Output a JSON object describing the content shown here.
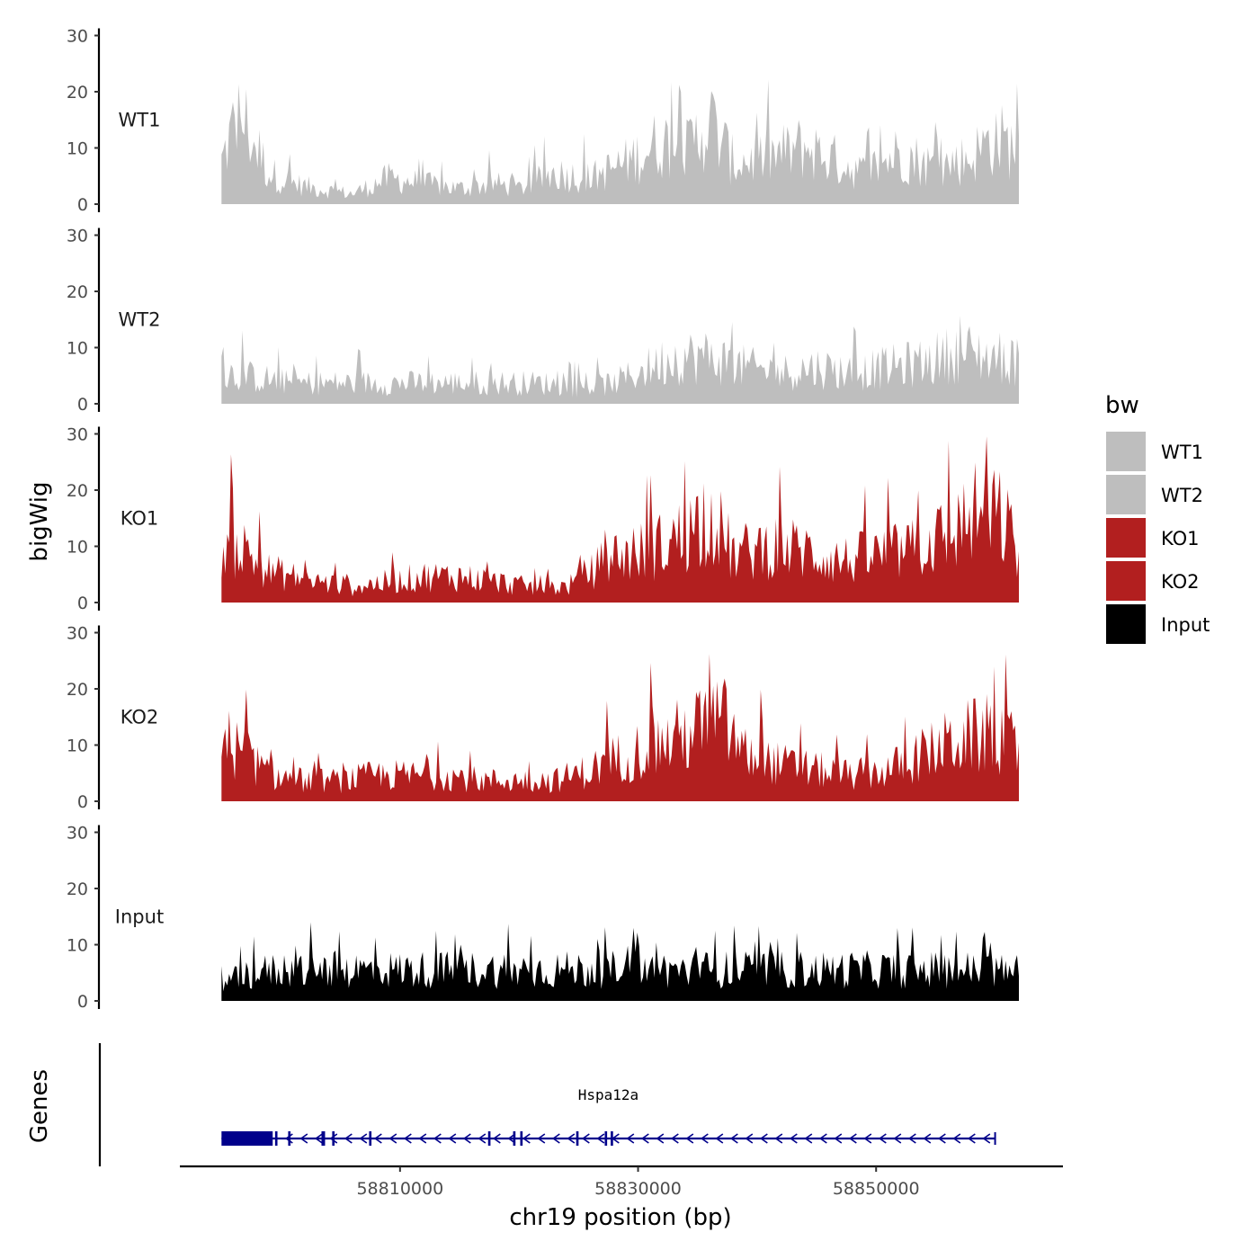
{
  "chart_data": {
    "type": "area",
    "title": "",
    "ylabel": "bigWig",
    "genes_label": "Genes",
    "xlabel": "chr19 position (bp)",
    "xlim": [
      58791500,
      58865700
    ],
    "x_ticks": [
      {
        "value": 58810000,
        "label": "58810000"
      },
      {
        "value": 58830000,
        "label": "58830000"
      },
      {
        "value": 58850000,
        "label": "58850000"
      }
    ],
    "ylim": [
      0,
      30
    ],
    "y_ticks": [
      {
        "value": 0,
        "label": "0"
      },
      {
        "value": 10,
        "label": "10"
      },
      {
        "value": 20,
        "label": "20"
      },
      {
        "value": 30,
        "label": "30"
      }
    ],
    "data_range": [
      58795000,
      58862000
    ],
    "legend": {
      "title": "bw",
      "entries": [
        {
          "label": "WT1",
          "color": "#bebebe"
        },
        {
          "label": "WT2",
          "color": "#bebebe"
        },
        {
          "label": "KO1",
          "color": "#b21f1f"
        },
        {
          "label": "KO2",
          "color": "#b21f1f"
        },
        {
          "label": "Input",
          "color": "#000000"
        }
      ]
    },
    "series": [
      {
        "name": "WT1",
        "color": "#bebebe",
        "max": 23,
        "anchors": [
          [
            58795000,
            8
          ],
          [
            58796500,
            18
          ],
          [
            58797500,
            13
          ],
          [
            58799000,
            6
          ],
          [
            58801000,
            4
          ],
          [
            58803000,
            3
          ],
          [
            58806000,
            2
          ],
          [
            58809000,
            5
          ],
          [
            58812000,
            4
          ],
          [
            58815000,
            3
          ],
          [
            58818000,
            4
          ],
          [
            58820000,
            3
          ],
          [
            58823000,
            6
          ],
          [
            58826000,
            5
          ],
          [
            58829000,
            8
          ],
          [
            58832000,
            12
          ],
          [
            58834000,
            10
          ],
          [
            58836000,
            16
          ],
          [
            58838000,
            8
          ],
          [
            58841000,
            9
          ],
          [
            58844000,
            11
          ],
          [
            58847000,
            8
          ],
          [
            58849000,
            6
          ],
          [
            58852000,
            10
          ],
          [
            58855000,
            7
          ],
          [
            58858000,
            9
          ],
          [
            58860000,
            13
          ],
          [
            58862000,
            10
          ]
        ]
      },
      {
        "name": "WT2",
        "color": "#bebebe",
        "max": 17,
        "anchors": [
          [
            58795000,
            6
          ],
          [
            58798000,
            5
          ],
          [
            58801000,
            4
          ],
          [
            58804000,
            4
          ],
          [
            58807000,
            4
          ],
          [
            58810000,
            4
          ],
          [
            58813000,
            4
          ],
          [
            58816000,
            4
          ],
          [
            58819000,
            4
          ],
          [
            58822000,
            4
          ],
          [
            58825000,
            3
          ],
          [
            58828000,
            4
          ],
          [
            58830000,
            6
          ],
          [
            58833000,
            9
          ],
          [
            58836000,
            9
          ],
          [
            58839000,
            7
          ],
          [
            58842000,
            6
          ],
          [
            58845000,
            7
          ],
          [
            58848000,
            6
          ],
          [
            58851000,
            7
          ],
          [
            58854000,
            8
          ],
          [
            58857000,
            10
          ],
          [
            58860000,
            9
          ],
          [
            58862000,
            8
          ]
        ]
      },
      {
        "name": "KO1",
        "color": "#b21f1f",
        "max": 30,
        "anchors": [
          [
            58795000,
            11
          ],
          [
            58797000,
            10
          ],
          [
            58799000,
            6
          ],
          [
            58801000,
            5
          ],
          [
            58803000,
            4
          ],
          [
            58806000,
            3
          ],
          [
            58809000,
            4
          ],
          [
            58812000,
            5
          ],
          [
            58815000,
            5
          ],
          [
            58818000,
            4
          ],
          [
            58821000,
            3
          ],
          [
            58824000,
            3
          ],
          [
            58826000,
            6
          ],
          [
            58828000,
            9
          ],
          [
            58831000,
            10
          ],
          [
            58834000,
            13
          ],
          [
            58836000,
            18
          ],
          [
            58838000,
            9
          ],
          [
            58841000,
            11
          ],
          [
            58844000,
            10
          ],
          [
            58847000,
            8
          ],
          [
            58850000,
            9
          ],
          [
            58853000,
            10
          ],
          [
            58856000,
            13
          ],
          [
            58859000,
            18
          ],
          [
            58861000,
            15
          ],
          [
            58862000,
            8
          ]
        ]
      },
      {
        "name": "KO2",
        "color": "#b21f1f",
        "max": 27,
        "anchors": [
          [
            58795000,
            12
          ],
          [
            58797000,
            9
          ],
          [
            58799000,
            5
          ],
          [
            58802000,
            4
          ],
          [
            58805000,
            4
          ],
          [
            58808000,
            5
          ],
          [
            58811000,
            5
          ],
          [
            58814000,
            5
          ],
          [
            58817000,
            4
          ],
          [
            58820000,
            4
          ],
          [
            58823000,
            4
          ],
          [
            58826000,
            6
          ],
          [
            58829000,
            9
          ],
          [
            58832000,
            11
          ],
          [
            58835000,
            14
          ],
          [
            58837000,
            16
          ],
          [
            58839000,
            9
          ],
          [
            58842000,
            7
          ],
          [
            58845000,
            6
          ],
          [
            58848000,
            5
          ],
          [
            58851000,
            6
          ],
          [
            58854000,
            9
          ],
          [
            58857000,
            12
          ],
          [
            58860000,
            13
          ],
          [
            58862000,
            10
          ]
        ]
      },
      {
        "name": "Input",
        "color": "#000000",
        "max": 14,
        "anchors": [
          [
            58795000,
            3
          ],
          [
            58797000,
            5
          ],
          [
            58800000,
            6
          ],
          [
            58803000,
            6
          ],
          [
            58806000,
            6
          ],
          [
            58809000,
            6
          ],
          [
            58812000,
            6
          ],
          [
            58815000,
            6
          ],
          [
            58818000,
            6
          ],
          [
            58821000,
            6
          ],
          [
            58824000,
            6
          ],
          [
            58827000,
            6
          ],
          [
            58830000,
            6
          ],
          [
            58833000,
            6
          ],
          [
            58836000,
            6
          ],
          [
            58839000,
            6
          ],
          [
            58842000,
            6
          ],
          [
            58845000,
            6
          ],
          [
            58848000,
            6
          ],
          [
            58851000,
            6
          ],
          [
            58854000,
            6
          ],
          [
            58857000,
            6
          ],
          [
            58860000,
            6
          ],
          [
            58862000,
            5
          ]
        ]
      }
    ],
    "gene": {
      "name": "Hspa12a",
      "strand": "-",
      "start": 58795000,
      "end": 58860000,
      "color": "#00008b",
      "exons": [
        [
          58795000,
          58799300
        ],
        [
          58799500,
          58799700
        ],
        [
          58800600,
          58800800
        ],
        [
          58803400,
          58803700
        ],
        [
          58804300,
          58804500
        ],
        [
          58807400,
          58807600
        ],
        [
          58817400,
          58817600
        ],
        [
          58819500,
          58819700
        ],
        [
          58820100,
          58820300
        ],
        [
          58824800,
          58825000
        ],
        [
          58827200,
          58827400
        ],
        [
          58827700,
          58827900
        ]
      ]
    }
  }
}
